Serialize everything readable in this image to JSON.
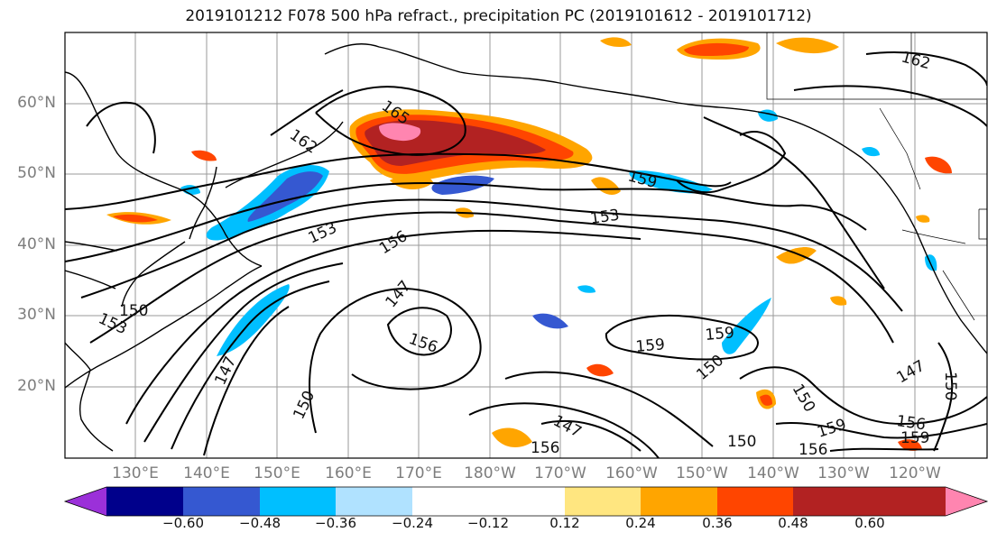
{
  "title": "2019101212 F078 500 hPa refract., precipitation PC (2019101612 - 2019101712)",
  "map": {
    "lat_labels": [
      "60°N",
      "50°N",
      "40°N",
      "30°N",
      "20°N"
    ],
    "lon_labels": [
      "130°E",
      "140°E",
      "150°E",
      "160°E",
      "170°E",
      "180°W",
      "170°W",
      "160°W",
      "150°W",
      "140°W",
      "130°W",
      "120°W"
    ],
    "contour_labels": [
      "165",
      "162",
      "162",
      "159",
      "153",
      "153",
      "156",
      "147",
      "150",
      "153",
      "156",
      "159",
      "159",
      "150",
      "147",
      "150",
      "147",
      "156",
      "159",
      "156",
      "159",
      "150",
      "156",
      "147",
      "150",
      "150"
    ]
  },
  "colorbar": {
    "ticks": [
      "−0.60",
      "−0.48",
      "−0.36",
      "−0.24",
      "−0.12",
      "0.12",
      "0.24",
      "0.36",
      "0.48",
      "0.60"
    ],
    "colors": [
      "#9b30d9",
      "#00008b",
      "#3558d1",
      "#00bfff",
      "#b0e2ff",
      "#ffffff",
      "#ffe680",
      "#ffa500",
      "#ff4500",
      "#b22222",
      "#ff85b0"
    ]
  }
}
